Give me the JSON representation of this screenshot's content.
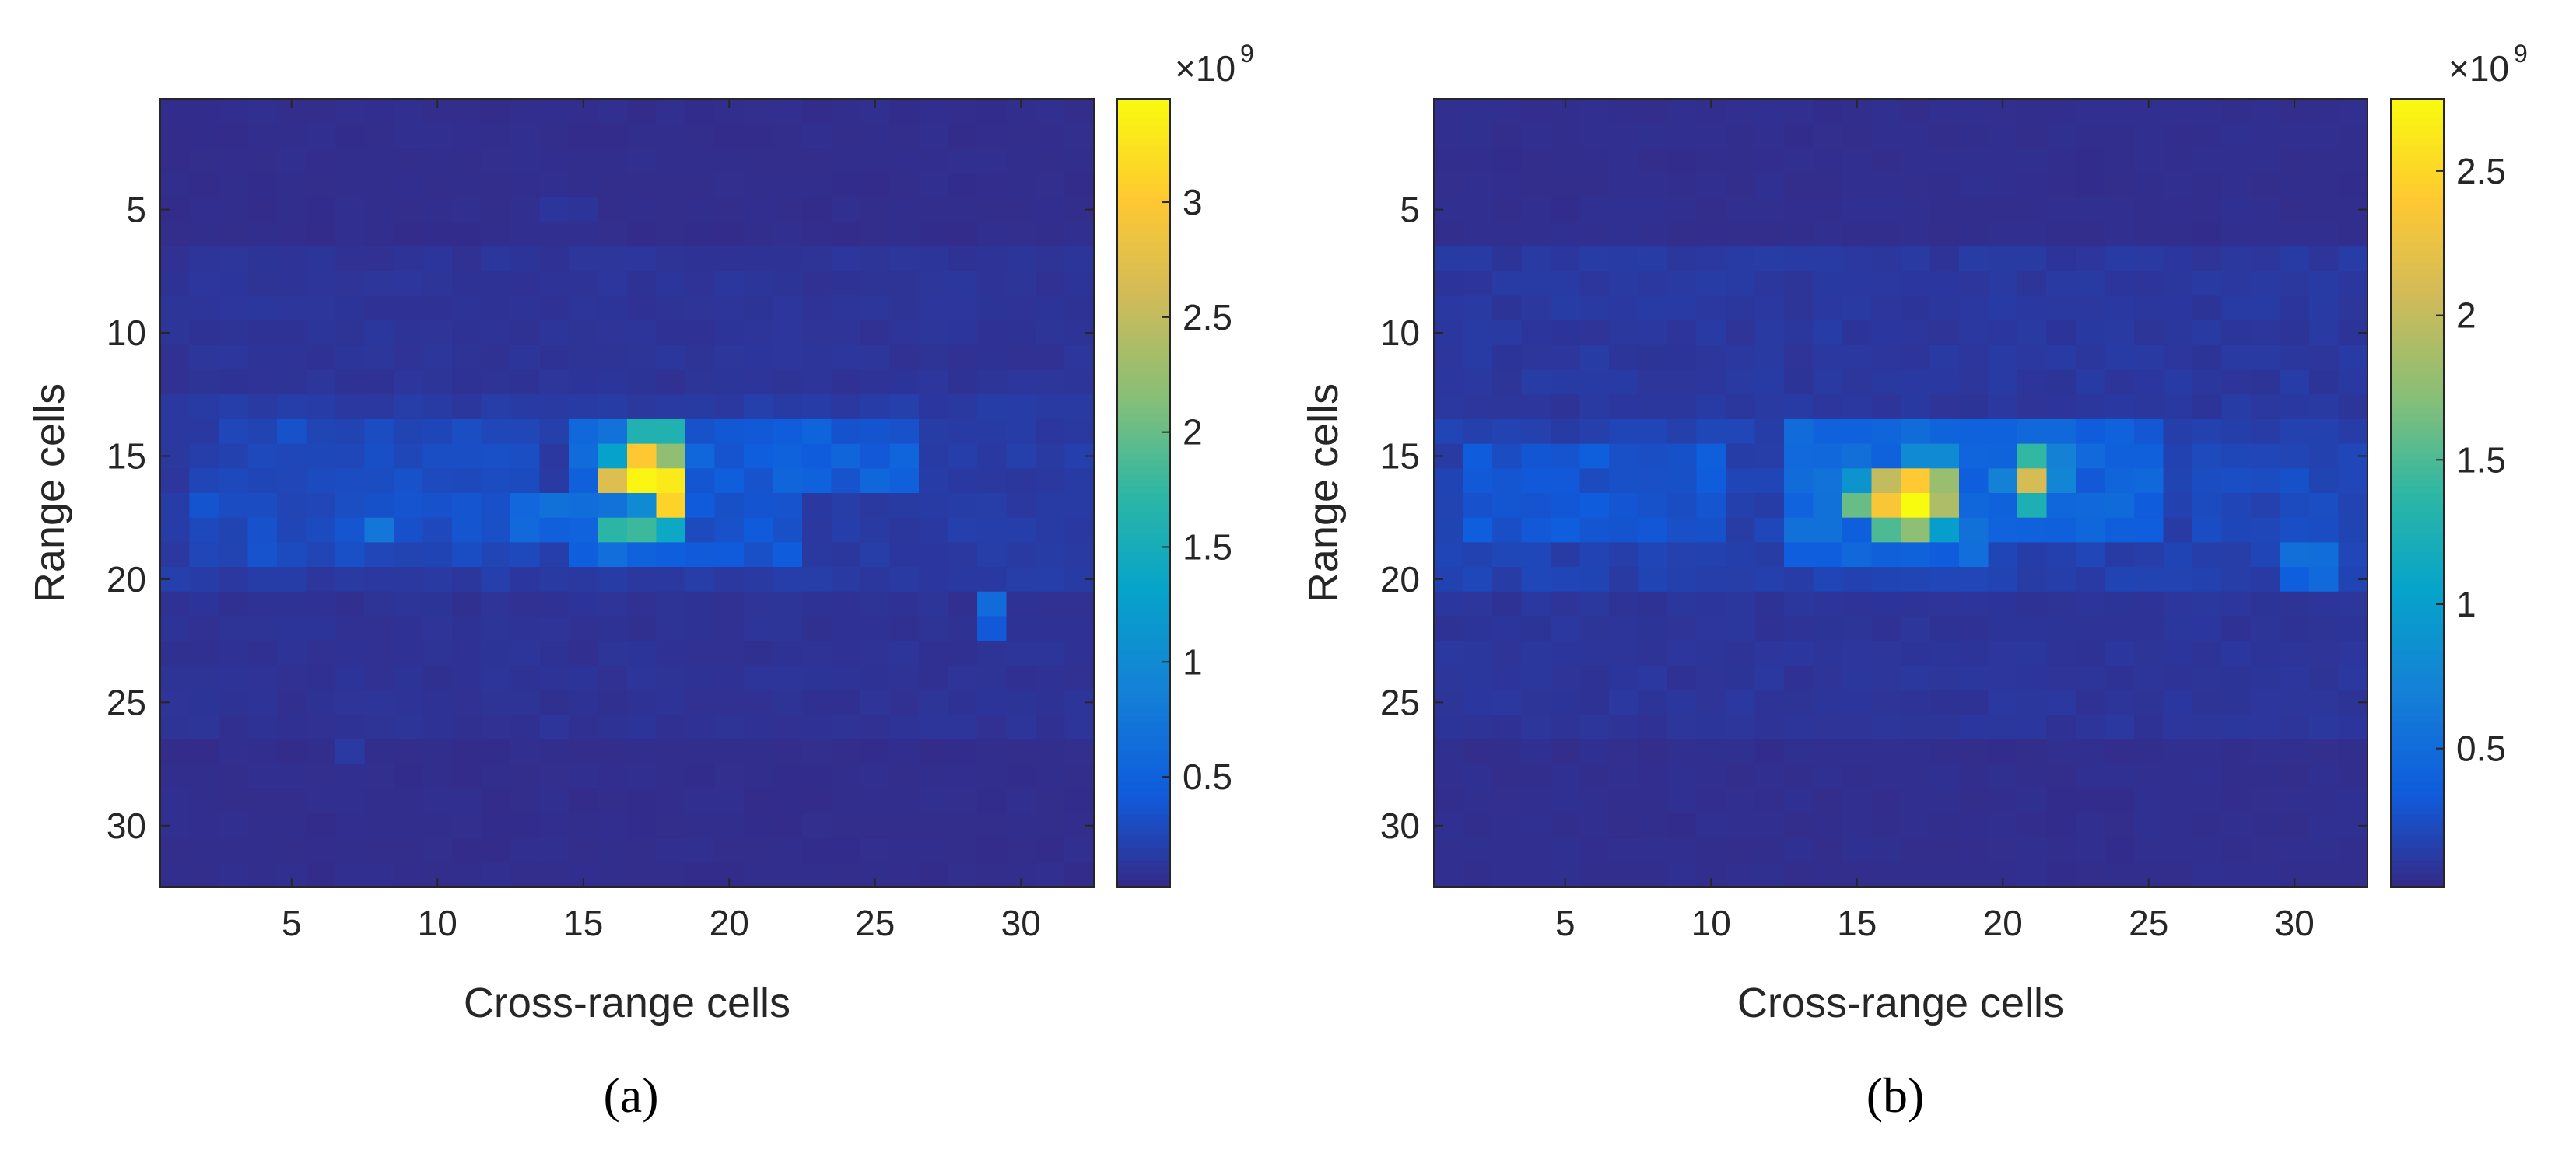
{
  "chart_data": [
    {
      "type": "heatmap",
      "panel_label": "(a)",
      "xlabel": "Cross-range cells",
      "ylabel": "Range cells",
      "x_ticks": [
        "5",
        "10",
        "15",
        "20",
        "25",
        "30"
      ],
      "y_ticks": [
        "5",
        "10",
        "15",
        "20",
        "25",
        "30"
      ],
      "xlim": [
        0.5,
        32.5
      ],
      "ylim": [
        0.5,
        32.5
      ],
      "colorbar": {
        "exponent_base": "×10",
        "exponent_power": "9",
        "ticks": [
          "0.5",
          "1",
          "1.5",
          "2",
          "2.5",
          "3"
        ],
        "tick_values": [
          0.5,
          1,
          1.5,
          2,
          2.5,
          3
        ],
        "range": [
          0.02,
          3.45
        ]
      },
      "colormap": "parula",
      "background": 0.05,
      "blocks": [
        [
          7,
          12,
          1,
          32,
          0.1
        ],
        [
          13,
          20,
          1,
          32,
          0.16
        ],
        [
          21,
          26,
          1,
          32,
          0.09
        ],
        [
          14,
          15,
          3,
          13,
          0.28
        ],
        [
          16,
          19,
          2,
          13,
          0.3
        ],
        [
          14,
          16,
          18,
          26,
          0.45
        ],
        [
          17,
          19,
          19,
          22,
          0.35
        ],
        [
          17,
          18,
          13,
          15,
          0.55
        ],
        [
          14,
          19,
          15,
          18,
          0.6
        ],
        [
          14,
          14,
          17,
          18,
          1.6
        ],
        [
          15,
          15,
          16,
          16,
          1.3
        ],
        [
          15,
          15,
          17,
          17,
          3.0
        ],
        [
          15,
          15,
          18,
          18,
          2.2
        ],
        [
          16,
          16,
          16,
          16,
          2.7
        ],
        [
          16,
          16,
          17,
          17,
          3.4
        ],
        [
          16,
          16,
          18,
          18,
          3.3
        ],
        [
          17,
          17,
          16,
          16,
          0.7
        ],
        [
          17,
          17,
          17,
          17,
          1.0
        ],
        [
          17,
          17,
          18,
          18,
          3.1
        ],
        [
          18,
          18,
          16,
          16,
          1.7
        ],
        [
          18,
          18,
          17,
          17,
          1.8
        ],
        [
          18,
          18,
          18,
          18,
          1.4
        ],
        [
          18,
          18,
          8,
          8,
          0.75
        ],
        [
          21,
          22,
          29,
          29,
          0.5
        ],
        [
          5,
          5,
          14,
          15,
          0.1
        ],
        [
          27,
          27,
          7,
          7,
          0.14
        ]
      ]
    },
    {
      "type": "heatmap",
      "panel_label": "(b)",
      "xlabel": "Cross-range cells",
      "ylabel": "Range cells",
      "x_ticks": [
        "5",
        "10",
        "15",
        "20",
        "25",
        "30"
      ],
      "y_ticks": [
        "5",
        "10",
        "15",
        "20",
        "25",
        "30"
      ],
      "xlim": [
        0.5,
        32.5
      ],
      "ylim": [
        0.5,
        32.5
      ],
      "colorbar": {
        "exponent_base": "×10",
        "exponent_power": "9",
        "ticks": [
          "0.5",
          "1",
          "1.5",
          "2",
          "2.5"
        ],
        "tick_values": [
          0.5,
          1,
          1.5,
          2,
          2.5
        ],
        "range": [
          0.02,
          2.75
        ]
      },
      "colormap": "parula",
      "background": 0.05,
      "blocks": [
        [
          7,
          13,
          1,
          32,
          0.11
        ],
        [
          14,
          20,
          1,
          32,
          0.17
        ],
        [
          21,
          26,
          1,
          32,
          0.09
        ],
        [
          15,
          18,
          2,
          10,
          0.3
        ],
        [
          14,
          19,
          13,
          19,
          0.45
        ],
        [
          14,
          18,
          20,
          25,
          0.4
        ],
        [
          15,
          18,
          27,
          31,
          0.22
        ],
        [
          15,
          16,
          13,
          14,
          0.6
        ],
        [
          16,
          16,
          15,
          15,
          0.9
        ],
        [
          16,
          16,
          16,
          16,
          2.0
        ],
        [
          16,
          16,
          17,
          17,
          2.4
        ],
        [
          16,
          16,
          18,
          18,
          1.8
        ],
        [
          17,
          17,
          15,
          15,
          1.6
        ],
        [
          17,
          17,
          16,
          16,
          2.35
        ],
        [
          17,
          17,
          17,
          17,
          2.75
        ],
        [
          17,
          17,
          18,
          18,
          1.9
        ],
        [
          18,
          18,
          16,
          16,
          1.5
        ],
        [
          18,
          18,
          17,
          17,
          1.75
        ],
        [
          18,
          18,
          18,
          18,
          1.0
        ],
        [
          15,
          15,
          17,
          18,
          0.8
        ],
        [
          15,
          15,
          21,
          21,
          1.4
        ],
        [
          16,
          16,
          21,
          21,
          2.1
        ],
        [
          17,
          17,
          21,
          21,
          1.25
        ],
        [
          16,
          16,
          20,
          20,
          0.7
        ],
        [
          16,
          16,
          22,
          22,
          0.75
        ],
        [
          15,
          15,
          22,
          22,
          0.6
        ],
        [
          19,
          20,
          30,
          31,
          0.45
        ]
      ]
    }
  ]
}
